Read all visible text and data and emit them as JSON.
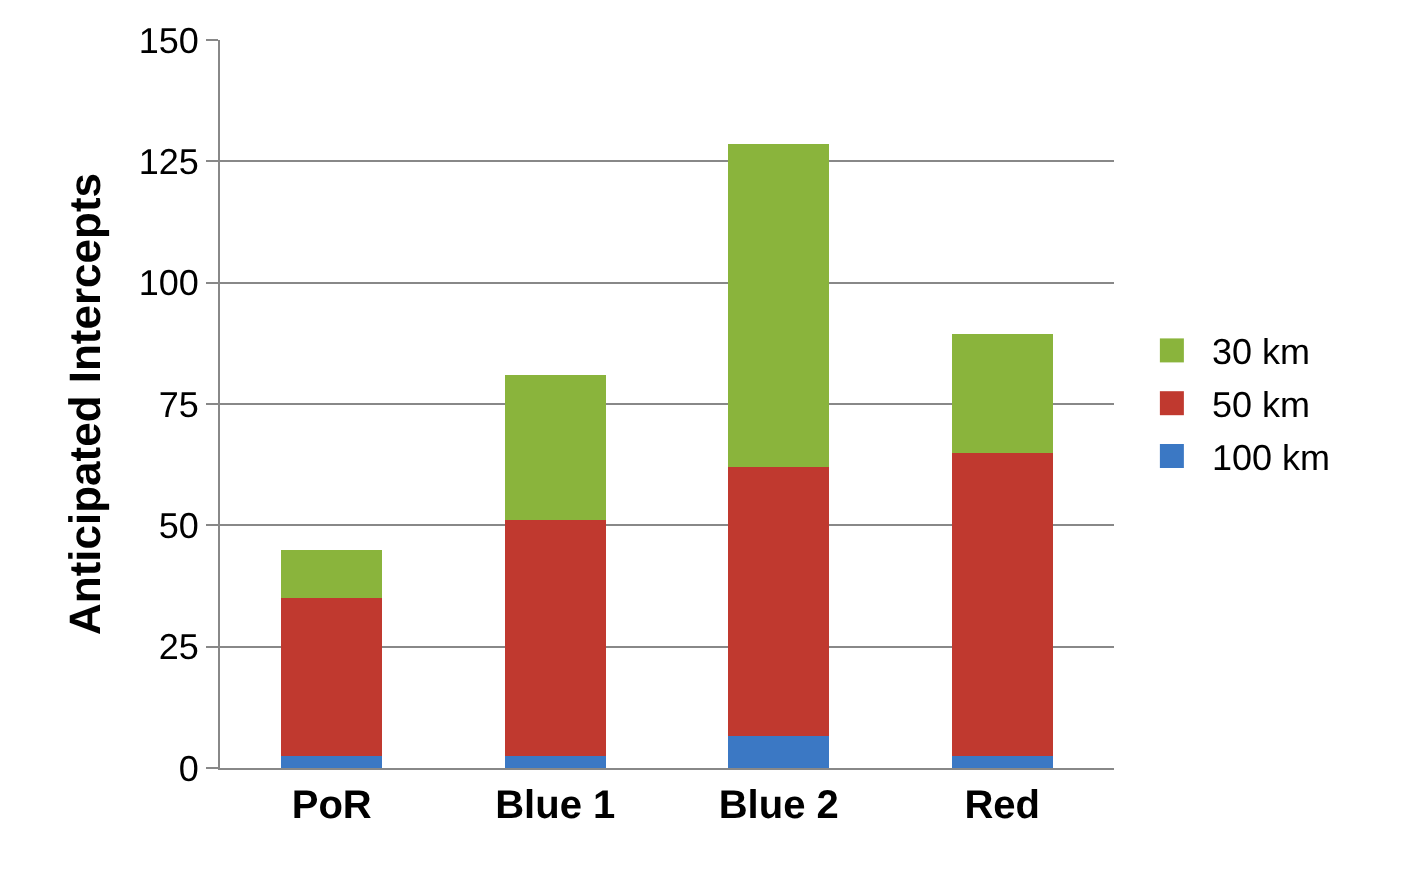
{
  "chart_data": {
    "type": "bar",
    "stacked": true,
    "ylabel": "Anticipated Intercepts",
    "categories": [
      "PoR",
      "Blue 1",
      "Blue 2",
      "Red"
    ],
    "series": [
      {
        "name": "100 km",
        "color": "#3b78c4",
        "values": [
          2.5,
          2.5,
          6.5,
          2.5
        ]
      },
      {
        "name": "50 km",
        "color": "#c0392f",
        "values": [
          32.5,
          48.5,
          55.5,
          62.5
        ]
      },
      {
        "name": "30 km",
        "color": "#8ab43c",
        "values": [
          10,
          30,
          66.5,
          24.5
        ]
      }
    ],
    "ylim": [
      0,
      150
    ],
    "yticks": [
      0,
      25,
      50,
      75,
      100,
      125,
      150
    ],
    "grid": "y",
    "legend": "right"
  }
}
